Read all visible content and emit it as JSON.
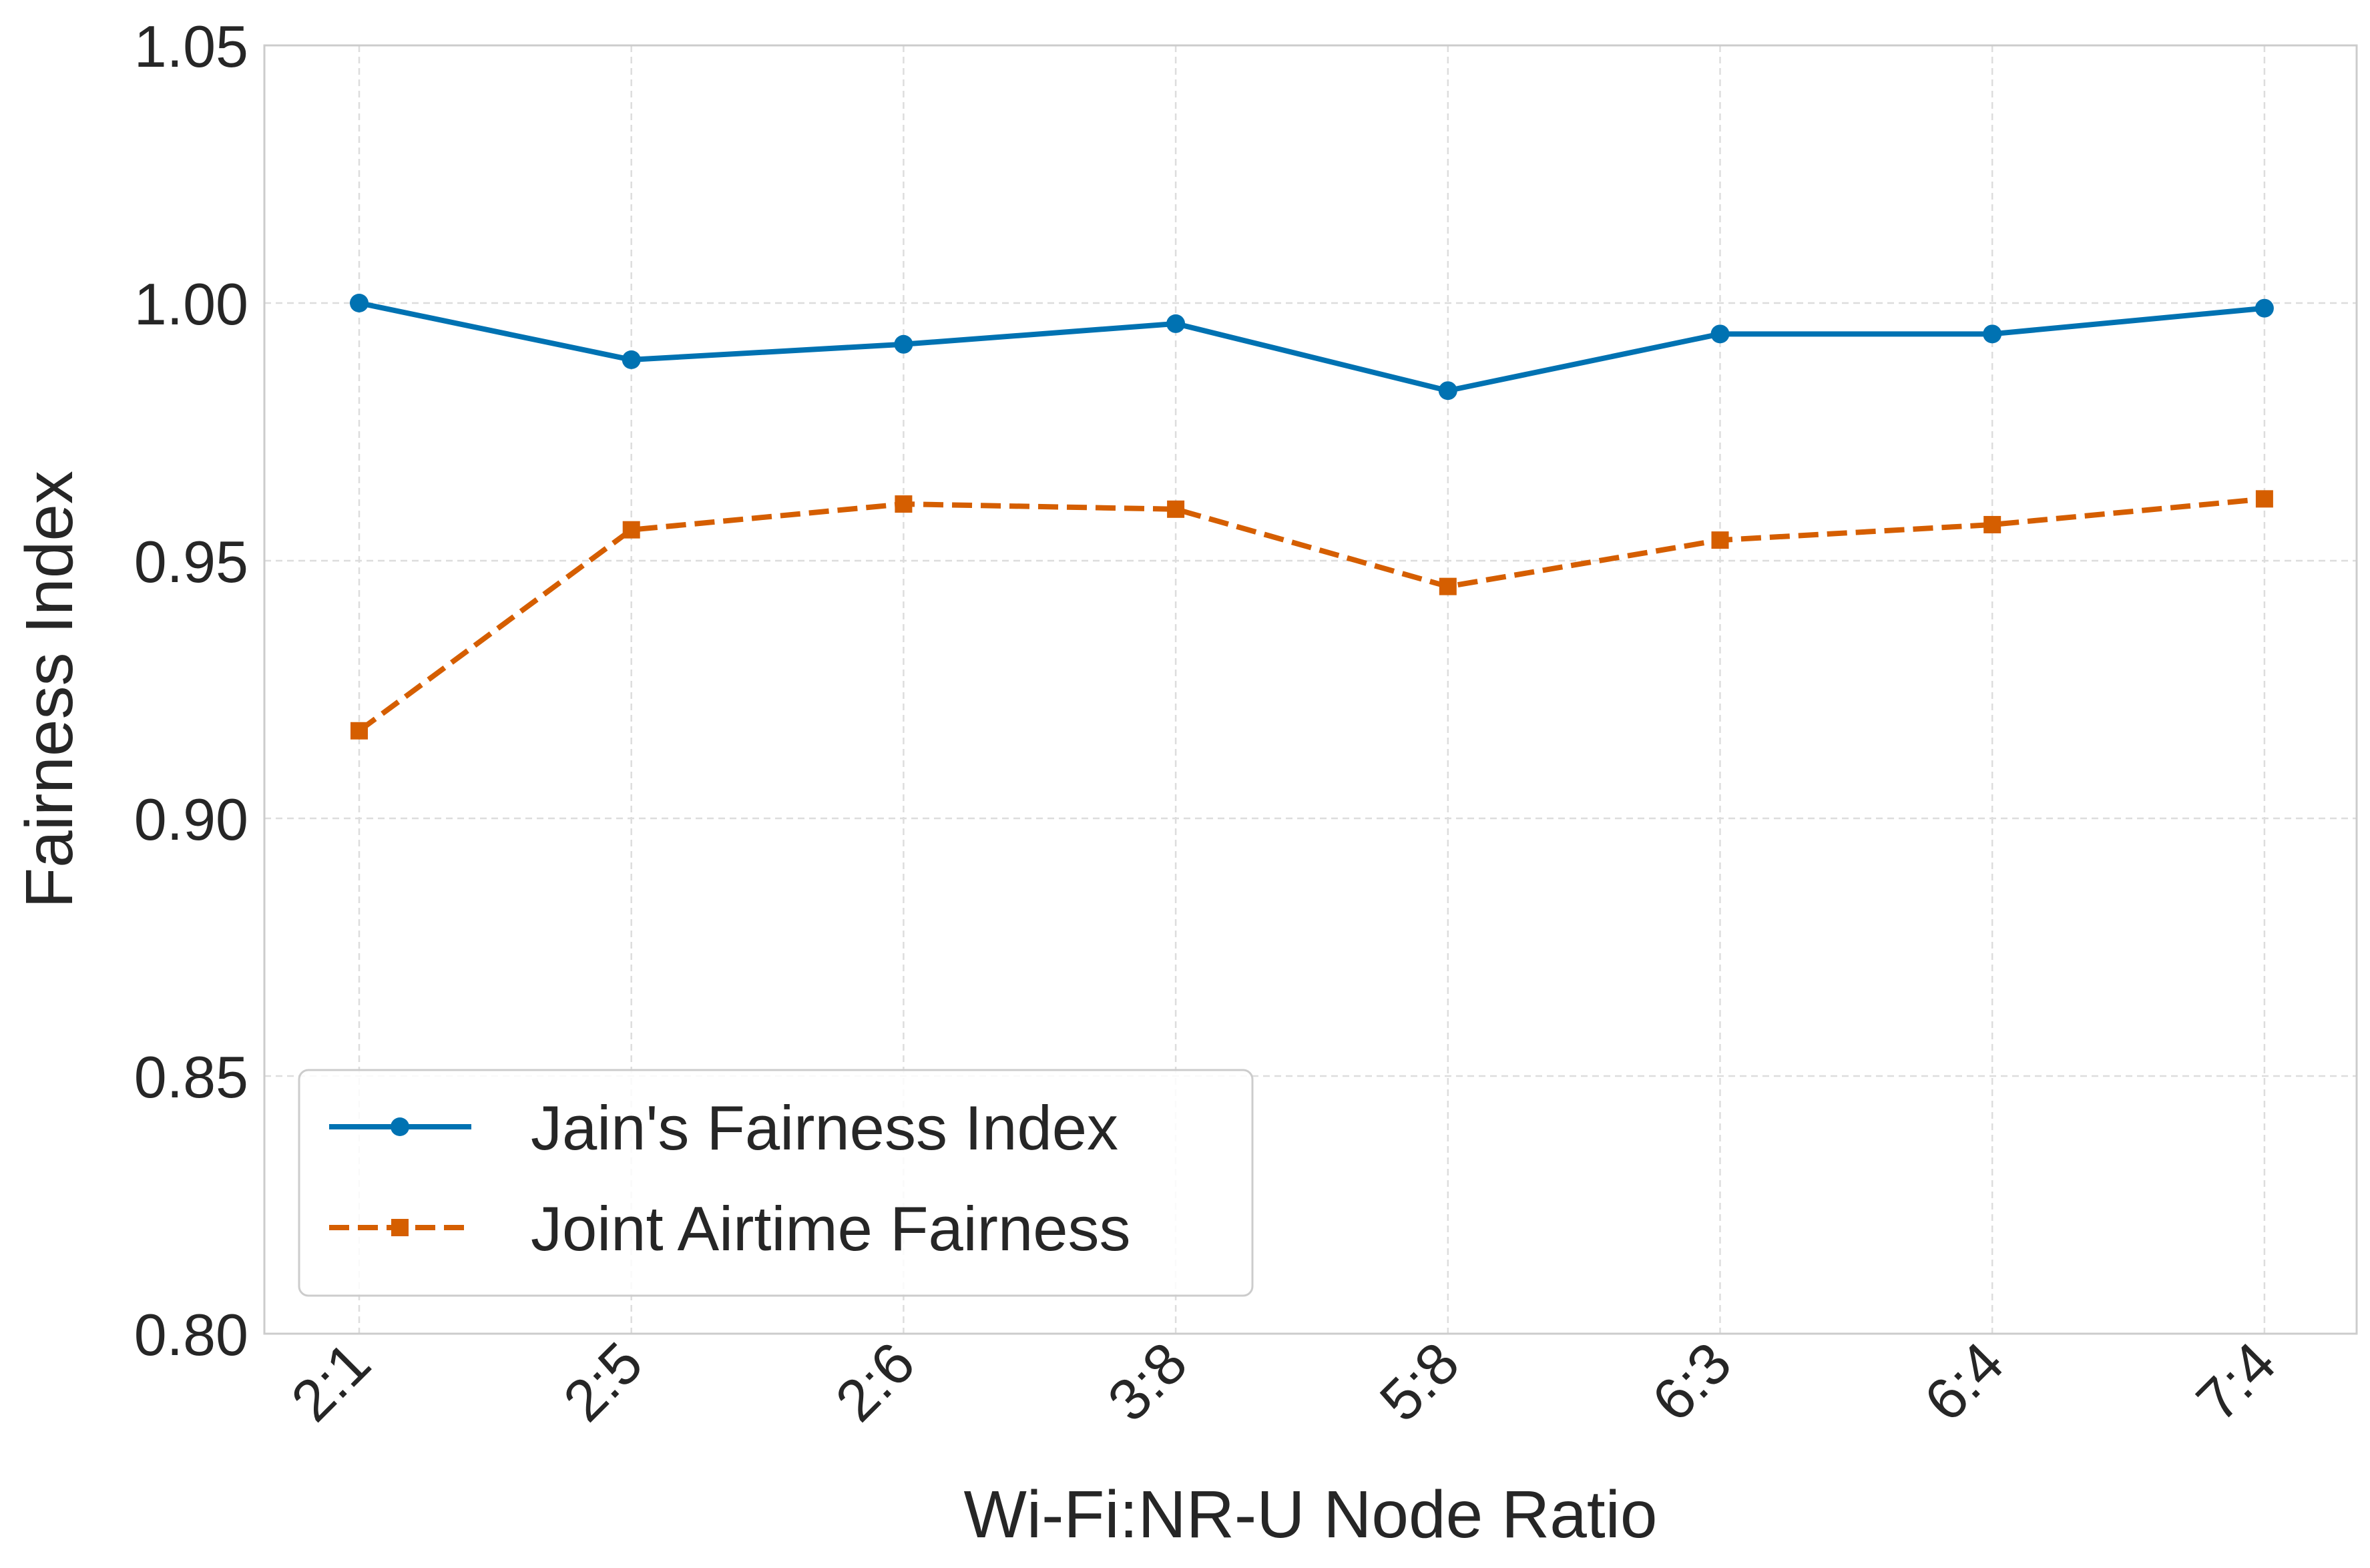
{
  "chart_data": {
    "type": "line",
    "title": "",
    "xlabel": "Wi-Fi:NR-U Node Ratio",
    "ylabel": "Fairness Index",
    "categories": [
      "2:1",
      "2:5",
      "2:6",
      "3:8",
      "5:8",
      "6:3",
      "6:4",
      "7:4"
    ],
    "yticks": [
      "0.80",
      "0.85",
      "0.90",
      "0.95",
      "1.00",
      "1.05"
    ],
    "ylim": [
      0.8,
      1.05
    ],
    "grid": true,
    "legend_position": "lower-left",
    "series": [
      {
        "name": "Jain's Fairness Index",
        "color": "#0072b2",
        "line_style": "solid",
        "marker": "circle",
        "values": [
          1.0,
          0.989,
          0.992,
          0.996,
          0.983,
          0.994,
          0.994,
          0.999
        ]
      },
      {
        "name": "Joint Airtime Fairness",
        "color": "#d55e00",
        "line_style": "dashed",
        "marker": "square",
        "values": [
          0.917,
          0.956,
          0.961,
          0.96,
          0.945,
          0.954,
          0.957,
          0.962
        ]
      }
    ]
  }
}
